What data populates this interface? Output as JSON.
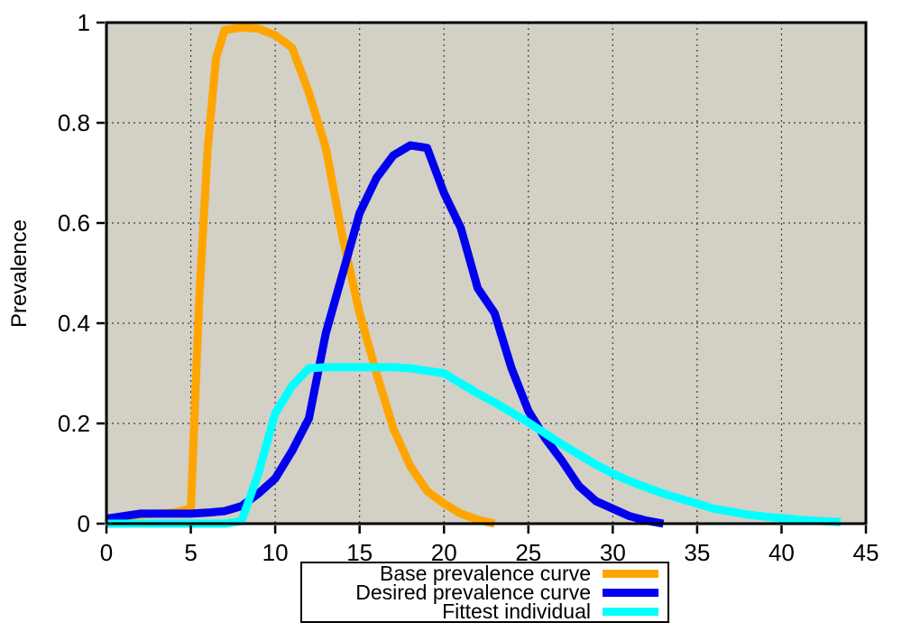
{
  "figure": {
    "background": "#ffffff",
    "plot_background": "#d3d0c6",
    "grid_color": "#3c3c3c",
    "axis_color": "#000000"
  },
  "chart_data": {
    "type": "line",
    "title": "",
    "xlabel": "",
    "ylabel": "Prevalence",
    "xlim": [
      0,
      45
    ],
    "ylim": [
      0,
      1
    ],
    "xticks": [
      "0",
      "5",
      "10",
      "15",
      "20",
      "25",
      "30",
      "35",
      "40",
      "45"
    ],
    "yticks": [
      "0",
      "0.2",
      "0.4",
      "0.6",
      "0.8",
      "1"
    ],
    "grid": "dotted",
    "legend_position": "below-plot-centered",
    "line_width": 9,
    "series": [
      {
        "name": "Base prevalence curve",
        "color": "#ffa500",
        "x": [
          0,
          1,
          2,
          3,
          4,
          5,
          5.5,
          6,
          6.5,
          7,
          8,
          9,
          10,
          11,
          12,
          13,
          14,
          15,
          16,
          17,
          18,
          19,
          20,
          21,
          22,
          23
        ],
        "y": [
          0.005,
          0.013,
          0.018,
          0.02,
          0.022,
          0.03,
          0.45,
          0.75,
          0.93,
          0.985,
          0.99,
          0.988,
          0.975,
          0.95,
          0.86,
          0.75,
          0.57,
          0.42,
          0.3,
          0.19,
          0.115,
          0.065,
          0.04,
          0.02,
          0.008,
          0.0
        ]
      },
      {
        "name": "Desired prevalence curve",
        "color": "#0000ee",
        "x": [
          0,
          1,
          2,
          3,
          4,
          5,
          6,
          7,
          8,
          9,
          10,
          11,
          12,
          13,
          14,
          15,
          16,
          17,
          18,
          19,
          20,
          21,
          22,
          23,
          24,
          25,
          26,
          27,
          28,
          29,
          30,
          31,
          32,
          33
        ],
        "y": [
          0.01,
          0.015,
          0.02,
          0.02,
          0.02,
          0.02,
          0.022,
          0.025,
          0.035,
          0.06,
          0.09,
          0.145,
          0.21,
          0.38,
          0.5,
          0.62,
          0.69,
          0.735,
          0.755,
          0.75,
          0.66,
          0.59,
          0.47,
          0.42,
          0.31,
          0.225,
          0.17,
          0.125,
          0.075,
          0.045,
          0.03,
          0.015,
          0.006,
          0.0
        ]
      },
      {
        "name": "Fittest individual",
        "color": "#00ffff",
        "x": [
          0,
          1,
          2,
          3,
          4,
          5,
          6,
          7,
          8,
          9,
          10,
          11,
          12,
          13,
          14,
          15,
          16,
          17,
          18,
          19,
          20,
          21,
          22,
          23,
          24,
          25,
          26,
          27,
          28,
          29,
          30,
          31,
          32,
          33,
          34,
          35,
          36,
          37,
          38,
          39,
          40,
          41,
          42,
          43,
          43.5
        ],
        "y": [
          0,
          0,
          0,
          0,
          0,
          0,
          0,
          0,
          0.005,
          0.1,
          0.22,
          0.275,
          0.31,
          0.312,
          0.312,
          0.312,
          0.312,
          0.312,
          0.31,
          0.305,
          0.3,
          0.28,
          0.26,
          0.242,
          0.222,
          0.202,
          0.18,
          0.158,
          0.138,
          0.118,
          0.1,
          0.085,
          0.072,
          0.06,
          0.05,
          0.04,
          0.03,
          0.024,
          0.018,
          0.014,
          0.011,
          0.008,
          0.006,
          0.004,
          0.003
        ]
      }
    ]
  },
  "legend": {
    "items": [
      {
        "label": "Base prevalence curve"
      },
      {
        "label": "Desired prevalence curve"
      },
      {
        "label": "Fittest individual"
      }
    ]
  }
}
